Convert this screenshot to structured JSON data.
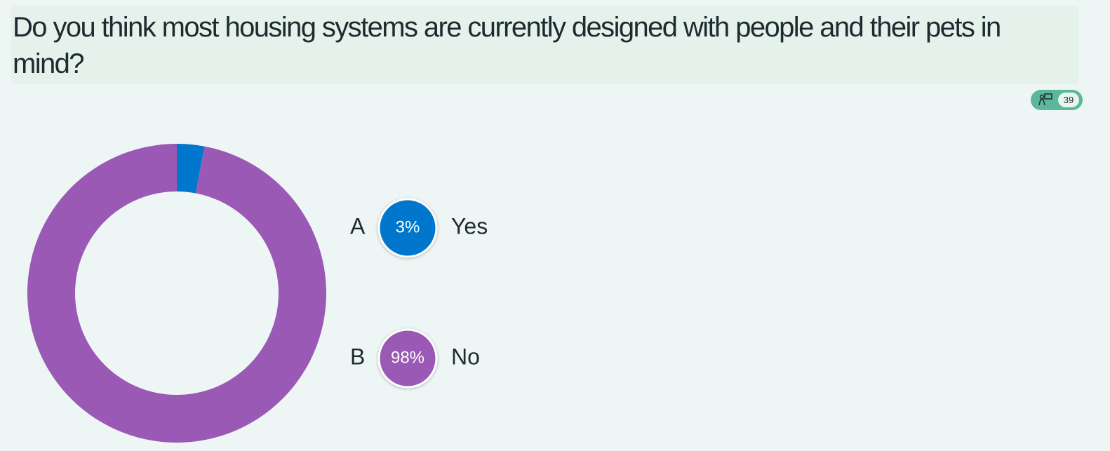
{
  "chart_data": {
    "type": "pie",
    "donut": true,
    "title": "Do you think most housing systems are currently designed with people and their pets in mind?",
    "response_count": 39,
    "letters": [
      "A",
      "B"
    ],
    "categories": [
      "Yes",
      "No"
    ],
    "values": [
      3,
      98
    ],
    "value_labels": [
      "3%",
      "98%"
    ],
    "colors": [
      "#0077cc",
      "#9b59b6"
    ]
  }
}
